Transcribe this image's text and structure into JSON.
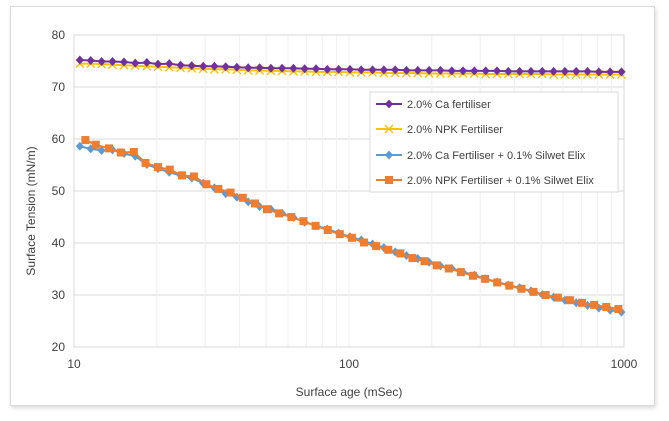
{
  "chart_data": {
    "type": "scatter",
    "title": "",
    "xlabel": "Surface age (mSec)",
    "ylabel": "Surface Tension (mN/m)",
    "xscale": "log",
    "xlim": [
      10,
      1000
    ],
    "ylim": [
      20,
      80
    ],
    "xticks": [
      "10",
      "100",
      "1000"
    ],
    "yticks": [
      "20",
      "30",
      "40",
      "50",
      "60",
      "70",
      "80"
    ],
    "grid": "horizontal",
    "legend_position": "right-middle",
    "series": [
      {
        "name": "2.0% Ca fertiliser",
        "color": "#7030a0",
        "marker": "diamond",
        "x": [
          10.5,
          11.5,
          12.6,
          13.8,
          15.2,
          16.7,
          18.4,
          20.2,
          22.2,
          24.4,
          26.8,
          29.5,
          32.4,
          35.6,
          39.1,
          43,
          47.3,
          52,
          57.1,
          62.8,
          69,
          75.9,
          83.4,
          91.7,
          100.8,
          110.8,
          121.8,
          133.9,
          147.2,
          161.8,
          177.9,
          195.6,
          215,
          236.4,
          259.9,
          285.7,
          314.1,
          345.3,
          379.6,
          417.3,
          458.8,
          504.4,
          554.5,
          609.6,
          670.2,
          736.8,
          810,
          890.5,
          979
        ],
        "y": [
          75.2,
          75.1,
          74.9,
          74.9,
          74.8,
          74.6,
          74.7,
          74.4,
          74.5,
          74.2,
          74.1,
          74,
          74,
          73.9,
          73.8,
          73.7,
          73.7,
          73.6,
          73.6,
          73.6,
          73.5,
          73.5,
          73.4,
          73.4,
          73.4,
          73.3,
          73.3,
          73.3,
          73.3,
          73.2,
          73.2,
          73.2,
          73.2,
          73.1,
          73.1,
          73.1,
          73.1,
          73.1,
          73,
          73,
          73,
          73,
          73,
          73,
          73,
          73,
          72.9,
          72.9,
          72.9
        ]
      },
      {
        "name": "2.0% NPK Fertiliser",
        "color": "#ffc000",
        "marker": "x",
        "x": [
          10.5,
          11.5,
          12.6,
          13.8,
          15.2,
          16.7,
          18.4,
          20.2,
          22.2,
          24.4,
          26.8,
          29.5,
          32.4,
          35.6,
          39.1,
          43,
          47.3,
          52,
          57.1,
          62.8,
          69,
          75.9,
          83.4,
          91.7,
          100.8,
          110.8,
          121.8,
          133.9,
          147.2,
          161.8,
          177.9,
          195.6,
          215,
          236.4,
          259.9,
          285.7,
          314.1,
          345.3,
          379.6,
          417.3,
          458.8,
          504.4,
          554.5,
          609.6,
          670.2,
          736.8,
          810,
          890.5,
          979
        ],
        "y": [
          74.5,
          74.5,
          74.4,
          74.3,
          74.2,
          74.1,
          74,
          73.9,
          73.8,
          73.7,
          73.6,
          73.5,
          73.4,
          73.4,
          73.3,
          73.2,
          73.2,
          73.1,
          73.1,
          73,
          73,
          72.9,
          72.9,
          72.9,
          72.8,
          72.8,
          72.8,
          72.7,
          72.7,
          72.7,
          72.7,
          72.6,
          72.6,
          72.6,
          72.6,
          72.6,
          72.5,
          72.5,
          72.5,
          72.5,
          72.5,
          72.5,
          72.4,
          72.4,
          72.4,
          72.4,
          72.4,
          72.4,
          72.4
        ]
      },
      {
        "name": "2.0% Ca Fertiliser + 0.1% Silwet Elix",
        "color": "#5b9bd5",
        "marker": "diamond",
        "x": [
          10.5,
          11.5,
          12.6,
          13.8,
          15.2,
          16.7,
          18.4,
          20.2,
          22.2,
          24.4,
          26.8,
          29.5,
          32.4,
          35.6,
          39.1,
          43,
          47.3,
          52,
          57.1,
          62.8,
          69,
          75.9,
          83.4,
          91.7,
          100.8,
          110.8,
          121.8,
          133.9,
          147.2,
          161.8,
          177.9,
          195.6,
          215,
          236.4,
          259.9,
          285.7,
          314.1,
          345.3,
          379.6,
          417.3,
          458.8,
          504.4,
          554.5,
          609.6,
          670.2,
          736.8,
          810,
          890.5,
          979
        ],
        "y": [
          58.6,
          58.1,
          57.8,
          57.9,
          57.2,
          56.7,
          55.1,
          54.3,
          53.6,
          53,
          52.5,
          51.5,
          50.6,
          49.5,
          48.8,
          47.9,
          47,
          46.5,
          45.7,
          44.9,
          44,
          43.3,
          42.7,
          41.9,
          41.2,
          40.6,
          39.8,
          39.1,
          38.3,
          37.6,
          37,
          36.3,
          35.6,
          35.1,
          34.4,
          33.8,
          33.1,
          32.5,
          31.9,
          31.4,
          30.8,
          30.1,
          29.6,
          29,
          28.5,
          28,
          27.5,
          27.1,
          26.7
        ]
      },
      {
        "name": "2.0% NPK Fertiliser + 0.1% Silwet Elix",
        "color": "#ed7d31",
        "marker": "square",
        "x": [
          11,
          12,
          13.4,
          14.8,
          16.5,
          18.2,
          20.2,
          22.3,
          24.7,
          27.3,
          30.3,
          33.5,
          37.1,
          41.1,
          45.5,
          50.3,
          55.7,
          61.7,
          68.3,
          75.6,
          83.7,
          92.6,
          102.5,
          113.4,
          125.5,
          138.9,
          153.7,
          170.1,
          188.3,
          208.4,
          230.6,
          255.2,
          282.4,
          312.6,
          346,
          382.9,
          423.8,
          469,
          519.1,
          574.5,
          635.8,
          703.7,
          778.8,
          862,
          954
        ],
        "y": [
          59.8,
          58.9,
          58.2,
          57.4,
          57.5,
          55.4,
          54.6,
          54.1,
          53,
          52.8,
          51.3,
          50.4,
          49.7,
          48.7,
          47.6,
          46.5,
          45.7,
          45,
          44.2,
          43.3,
          42.5,
          41.7,
          41,
          40.1,
          39.4,
          38.7,
          38,
          37.1,
          36.5,
          35.7,
          35.1,
          34.4,
          33.7,
          33.1,
          32.4,
          31.8,
          31.2,
          30.6,
          30,
          29.5,
          29,
          28.5,
          28.1,
          27.7,
          27.3
        ]
      }
    ]
  }
}
